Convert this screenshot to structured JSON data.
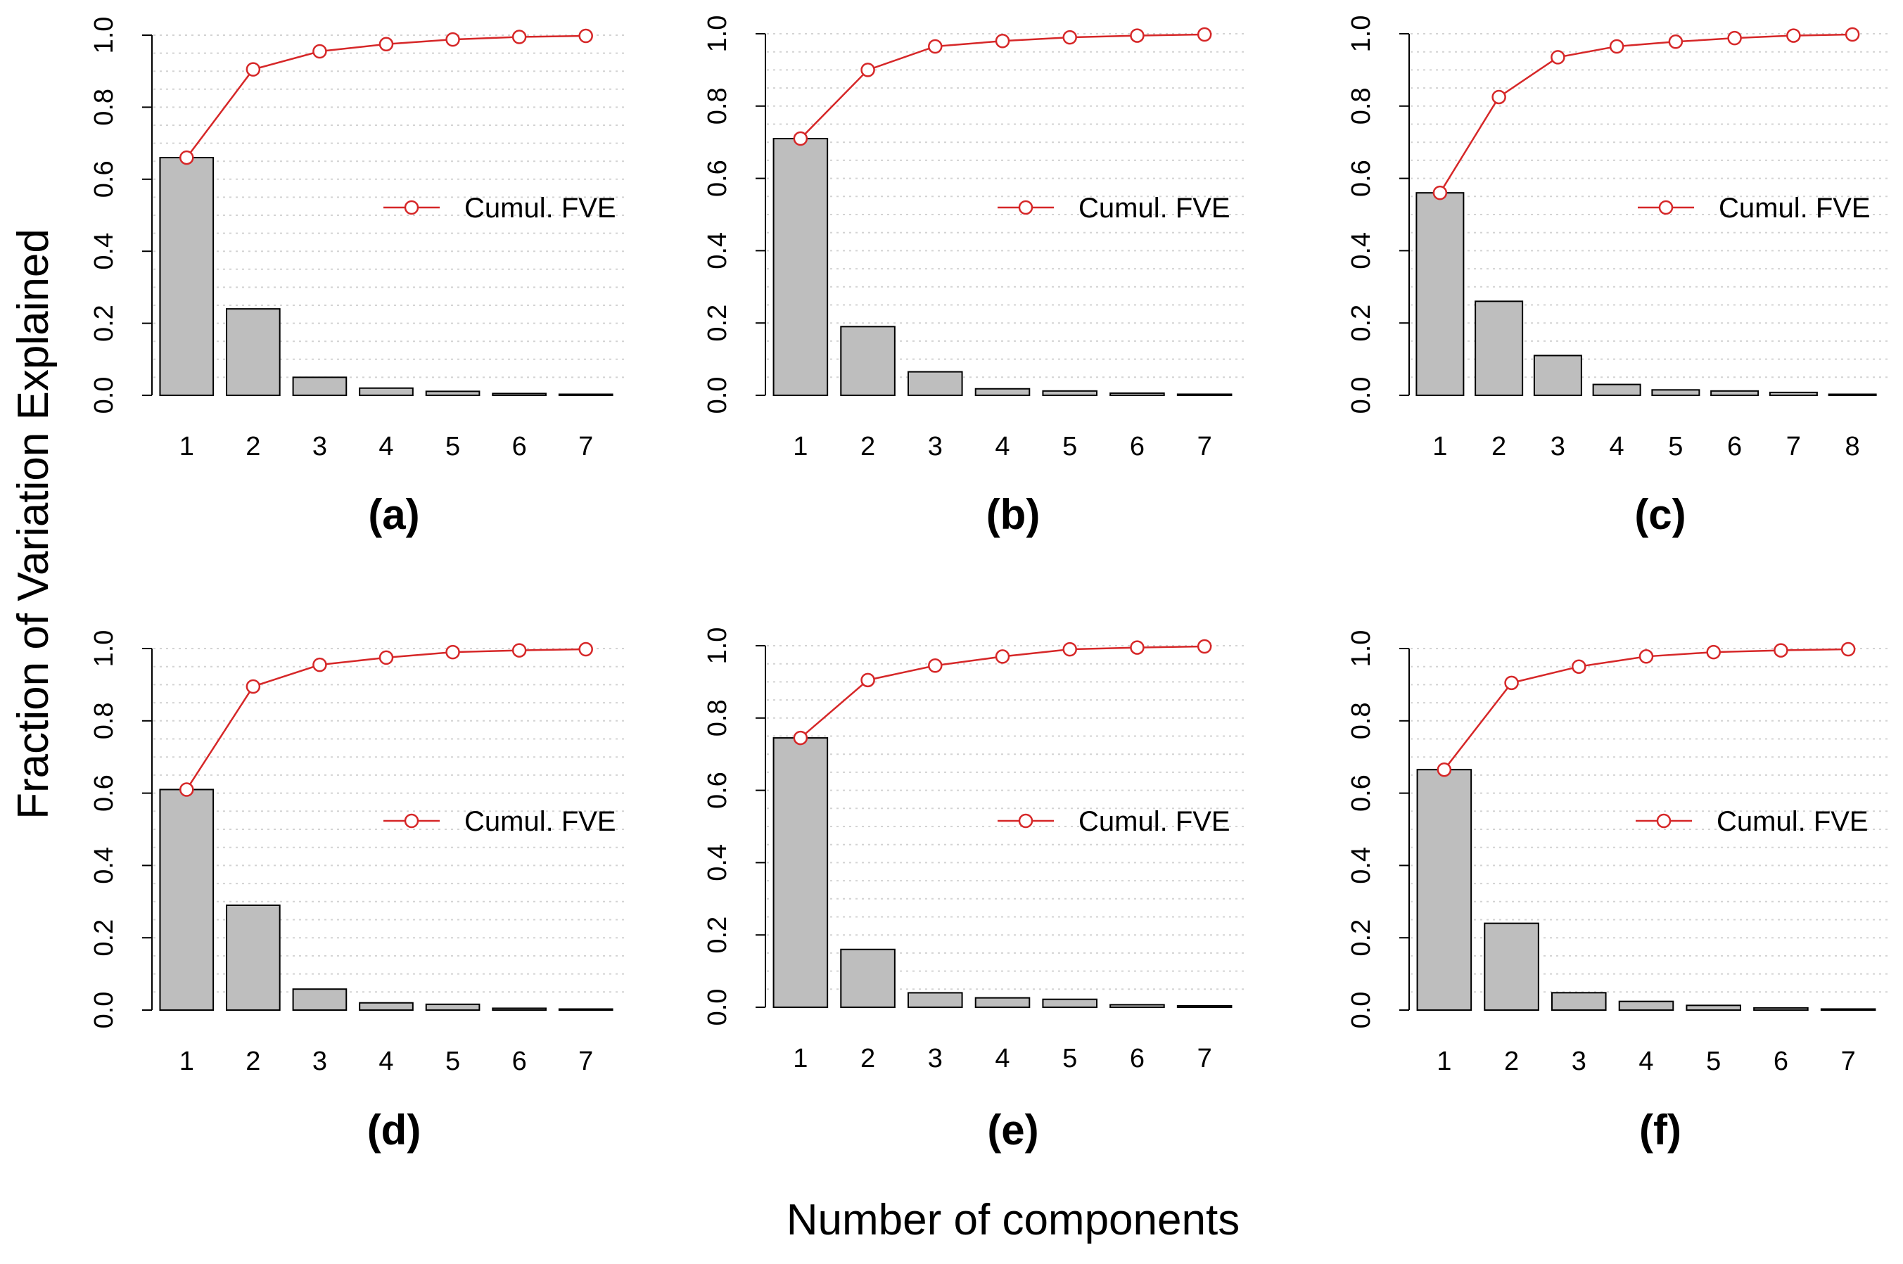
{
  "figure": {
    "ylabel": "Fraction of Variation Explained",
    "xlabel": "Number of components",
    "colors": {
      "bar_fill": "#bebebe",
      "bar_stroke": "#000000",
      "cumulative_line": "#d62728",
      "grid": "#d3d3d3"
    }
  },
  "chart_data": [
    {
      "type": "bar",
      "panel_label": "(a)",
      "categories": [
        "1",
        "2",
        "3",
        "4",
        "5",
        "6",
        "7"
      ],
      "series": [
        {
          "name": "FVE",
          "values": [
            0.66,
            0.24,
            0.05,
            0.02,
            0.011,
            0.005,
            0.002
          ]
        },
        {
          "name": "Cumul. FVE",
          "type": "line",
          "values": [
            0.66,
            0.905,
            0.955,
            0.975,
            0.988,
            0.995,
            0.998
          ]
        }
      ],
      "legend": "Cumul. FVE",
      "yticks": [
        "0.0",
        "0.2",
        "0.4",
        "0.6",
        "0.8",
        "1.0"
      ],
      "ylim": [
        0,
        1
      ],
      "grid": true
    },
    {
      "type": "bar",
      "panel_label": "(b)",
      "categories": [
        "1",
        "2",
        "3",
        "4",
        "5",
        "6",
        "7"
      ],
      "series": [
        {
          "name": "FVE",
          "values": [
            0.71,
            0.19,
            0.065,
            0.018,
            0.012,
            0.006,
            0.003
          ]
        },
        {
          "name": "Cumul. FVE",
          "type": "line",
          "values": [
            0.71,
            0.9,
            0.965,
            0.98,
            0.99,
            0.995,
            0.998
          ]
        }
      ],
      "legend": "Cumul. FVE",
      "yticks": [
        "0.0",
        "0.2",
        "0.4",
        "0.6",
        "0.8",
        "1.0"
      ],
      "ylim": [
        0,
        1
      ],
      "grid": true
    },
    {
      "type": "bar",
      "panel_label": "(c)",
      "categories": [
        "1",
        "2",
        "3",
        "4",
        "5",
        "6",
        "7",
        "8"
      ],
      "series": [
        {
          "name": "FVE",
          "values": [
            0.56,
            0.26,
            0.11,
            0.03,
            0.015,
            0.012,
            0.008,
            0.002
          ]
        },
        {
          "name": "Cumul. FVE",
          "type": "line",
          "values": [
            0.56,
            0.825,
            0.935,
            0.965,
            0.978,
            0.988,
            0.995,
            0.998
          ]
        }
      ],
      "legend": "Cumul. FVE",
      "yticks": [
        "0.0",
        "0.2",
        "0.4",
        "0.6",
        "0.8",
        "1.0"
      ],
      "ylim": [
        0,
        1
      ],
      "grid": true
    },
    {
      "type": "bar",
      "panel_label": "(d)",
      "categories": [
        "1",
        "2",
        "3",
        "4",
        "5",
        "6",
        "7"
      ],
      "series": [
        {
          "name": "FVE",
          "values": [
            0.61,
            0.29,
            0.058,
            0.02,
            0.016,
            0.005,
            0.002
          ]
        },
        {
          "name": "Cumul. FVE",
          "type": "line",
          "values": [
            0.61,
            0.895,
            0.955,
            0.975,
            0.99,
            0.995,
            0.998
          ]
        }
      ],
      "legend": "Cumul. FVE",
      "yticks": [
        "0.0",
        "0.2",
        "0.4",
        "0.6",
        "0.8",
        "1.0"
      ],
      "ylim": [
        0,
        1
      ],
      "grid": true
    },
    {
      "type": "bar",
      "panel_label": "(e)",
      "categories": [
        "1",
        "2",
        "3",
        "4",
        "5",
        "6",
        "7"
      ],
      "series": [
        {
          "name": "FVE",
          "values": [
            0.745,
            0.16,
            0.04,
            0.026,
            0.022,
            0.007,
            0.004
          ]
        },
        {
          "name": "Cumul. FVE",
          "type": "line",
          "values": [
            0.745,
            0.905,
            0.945,
            0.97,
            0.99,
            0.995,
            0.998
          ]
        }
      ],
      "legend": "Cumul. FVE",
      "yticks": [
        "0.0",
        "0.2",
        "0.4",
        "0.6",
        "0.8",
        "1.0"
      ],
      "ylim": [
        0,
        1
      ],
      "grid": true
    },
    {
      "type": "bar",
      "panel_label": "(f)",
      "categories": [
        "1",
        "2",
        "3",
        "4",
        "5",
        "6",
        "7"
      ],
      "series": [
        {
          "name": "FVE",
          "values": [
            0.665,
            0.24,
            0.048,
            0.024,
            0.013,
            0.006,
            0.003
          ]
        },
        {
          "name": "Cumul. FVE",
          "type": "line",
          "values": [
            0.665,
            0.905,
            0.95,
            0.978,
            0.99,
            0.995,
            0.998
          ]
        }
      ],
      "legend": "Cumul. FVE",
      "yticks": [
        "0.0",
        "0.2",
        "0.4",
        "0.6",
        "0.8",
        "1.0"
      ],
      "ylim": [
        0,
        1
      ],
      "grid": true
    }
  ]
}
